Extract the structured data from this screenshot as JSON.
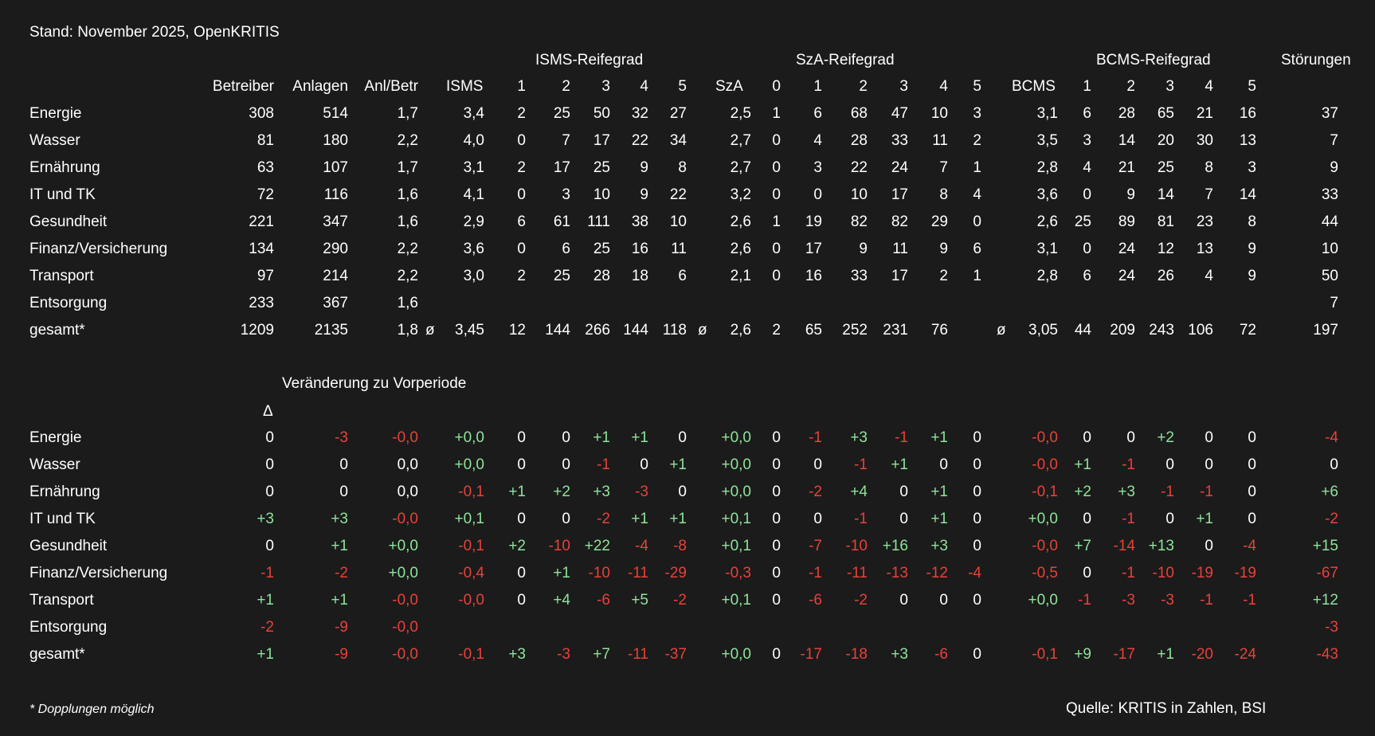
{
  "stand": "Stand: November 2025, OpenKRITIS",
  "groups": {
    "isms": "ISMS-Reifegrad",
    "sza": "SzA-Reifegrad",
    "bcms": "BCMS-Reifegrad",
    "stoerungen": "Störungen"
  },
  "columns": [
    "Betreiber",
    "Anlagen",
    "Anl/Betr",
    "ISMS",
    "1",
    "2",
    "3",
    "4",
    "5",
    "SzA",
    "0",
    "1",
    "2",
    "3",
    "4",
    "5",
    "BCMS",
    "1",
    "2",
    "3",
    "4",
    "5",
    ""
  ],
  "avg_symbol": "ø",
  "rows": [
    {
      "label": "Energie",
      "v": [
        "308",
        "514",
        "1,7",
        "3,4",
        "2",
        "25",
        "50",
        "32",
        "27",
        "2,5",
        "1",
        "6",
        "68",
        "47",
        "10",
        "3",
        "3,1",
        "6",
        "28",
        "65",
        "21",
        "16",
        "37"
      ]
    },
    {
      "label": "Wasser",
      "v": [
        "81",
        "180",
        "2,2",
        "4,0",
        "0",
        "7",
        "17",
        "22",
        "34",
        "2,7",
        "0",
        "4",
        "28",
        "33",
        "11",
        "2",
        "3,5",
        "3",
        "14",
        "20",
        "30",
        "13",
        "7"
      ]
    },
    {
      "label": "Ernährung",
      "v": [
        "63",
        "107",
        "1,7",
        "3,1",
        "2",
        "17",
        "25",
        "9",
        "8",
        "2,7",
        "0",
        "3",
        "22",
        "24",
        "7",
        "1",
        "2,8",
        "4",
        "21",
        "25",
        "8",
        "3",
        "9"
      ]
    },
    {
      "label": "IT und TK",
      "v": [
        "72",
        "116",
        "1,6",
        "4,1",
        "0",
        "3",
        "10",
        "9",
        "22",
        "3,2",
        "0",
        "0",
        "10",
        "17",
        "8",
        "4",
        "3,6",
        "0",
        "9",
        "14",
        "7",
        "14",
        "33"
      ]
    },
    {
      "label": "Gesundheit",
      "v": [
        "221",
        "347",
        "1,6",
        "2,9",
        "6",
        "61",
        "111",
        "38",
        "10",
        "2,6",
        "1",
        "19",
        "82",
        "82",
        "29",
        "0",
        "2,6",
        "25",
        "89",
        "81",
        "23",
        "8",
        "44"
      ]
    },
    {
      "label": "Finanz/Versicherung",
      "v": [
        "134",
        "290",
        "2,2",
        "3,6",
        "0",
        "6",
        "25",
        "16",
        "11",
        "2,6",
        "0",
        "17",
        "9",
        "11",
        "9",
        "6",
        "3,1",
        "0",
        "24",
        "12",
        "13",
        "9",
        "10"
      ]
    },
    {
      "label": "Transport",
      "v": [
        "97",
        "214",
        "2,2",
        "3,0",
        "2",
        "25",
        "28",
        "18",
        "6",
        "2,1",
        "0",
        "16",
        "33",
        "17",
        "2",
        "1",
        "2,8",
        "6",
        "24",
        "26",
        "4",
        "9",
        "50"
      ]
    },
    {
      "label": "Entsorgung",
      "v": [
        "233",
        "367",
        "1,6",
        "",
        "",
        "",
        "",
        "",
        "",
        "",
        "",
        "",
        "",
        "",
        "",
        "",
        "",
        "",
        "",
        "",
        "",
        "",
        "7"
      ]
    },
    {
      "label": "gesamt*",
      "v": [
        "1209",
        "2135",
        "1,8",
        "3,45",
        "12",
        "144",
        "266",
        "144",
        "118",
        "2,6",
        "2",
        "65",
        "252",
        "231",
        "76",
        "",
        "3,05",
        "44",
        "209",
        "243",
        "106",
        "72",
        "197"
      ]
    }
  ],
  "change_title": "Veränderung zu Vorperiode",
  "delta_symbol": "Δ",
  "changes": [
    {
      "label": "Energie",
      "v": [
        "0",
        "-3",
        "-0,0",
        "+0,0",
        "0",
        "0",
        "+1",
        "+1",
        "0",
        "+0,0",
        "0",
        "-1",
        "+3",
        "-1",
        "+1",
        "0",
        "-0,0",
        "0",
        "0",
        "+2",
        "0",
        "0",
        "-4"
      ]
    },
    {
      "label": "Wasser",
      "v": [
        "0",
        "0",
        "0,0",
        "+0,0",
        "0",
        "0",
        "-1",
        "0",
        "+1",
        "+0,0",
        "0",
        "0",
        "-1",
        "+1",
        "0",
        "0",
        "-0,0",
        "+1",
        "-1",
        "0",
        "0",
        "0",
        "0"
      ]
    },
    {
      "label": "Ernährung",
      "v": [
        "0",
        "0",
        "0,0",
        "-0,1",
        "+1",
        "+2",
        "+3",
        "-3",
        "0",
        "+0,0",
        "0",
        "-2",
        "+4",
        "0",
        "+1",
        "0",
        "-0,1",
        "+2",
        "+3",
        "-1",
        "-1",
        "0",
        "+6"
      ]
    },
    {
      "label": "IT und TK",
      "v": [
        "+3",
        "+3",
        "-0,0",
        "+0,1",
        "0",
        "0",
        "-2",
        "+1",
        "+1",
        "+0,1",
        "0",
        "0",
        "-1",
        "0",
        "+1",
        "0",
        "+0,0",
        "0",
        "-1",
        "0",
        "+1",
        "0",
        "-2"
      ]
    },
    {
      "label": "Gesundheit",
      "v": [
        "0",
        "+1",
        "+0,0",
        "-0,1",
        "+2",
        "-10",
        "+22",
        "-4",
        "-8",
        "+0,1",
        "0",
        "-7",
        "-10",
        "+16",
        "+3",
        "0",
        "-0,0",
        "+7",
        "-14",
        "+13",
        "0",
        "-4",
        "+15"
      ]
    },
    {
      "label": "Finanz/Versicherung",
      "v": [
        "-1",
        "-2",
        "+0,0",
        "-0,4",
        "0",
        "+1",
        "-10",
        "-11",
        "-29",
        "-0,3",
        "0",
        "-1",
        "-11",
        "-13",
        "-12",
        "-4",
        "-0,5",
        "0",
        "-1",
        "-10",
        "-19",
        "-19",
        "-67"
      ]
    },
    {
      "label": "Transport",
      "v": [
        "+1",
        "+1",
        "-0,0",
        "-0,0",
        "0",
        "+4",
        "-6",
        "+5",
        "-2",
        "+0,1",
        "0",
        "-6",
        "-2",
        "0",
        "0",
        "0",
        "+0,0",
        "-1",
        "-3",
        "-3",
        "-1",
        "-1",
        "+12"
      ]
    },
    {
      "label": "Entsorgung",
      "v": [
        "-2",
        "-9",
        "-0,0",
        "",
        "",
        "",
        "",
        "",
        "",
        "",
        "",
        "",
        "",
        "",
        "",
        "",
        "",
        "",
        "",
        "",
        "",
        "",
        "-3"
      ]
    },
    {
      "label": "gesamt*",
      "v": [
        "+1",
        "-9",
        "-0,0",
        "-0,1",
        "+3",
        "-3",
        "+7",
        "-11",
        "-37",
        "+0,0",
        "0",
        "-17",
        "-18",
        "+3",
        "-6",
        "0",
        "-0,1",
        "+9",
        "-17",
        "+1",
        "-20",
        "-24",
        "-43"
      ]
    }
  ],
  "footnote": "* Dopplungen möglich",
  "source": "Quelle: KRITIS in Zahlen, BSI",
  "colors": {
    "background": "#1b1b1b",
    "text": "#ffffff",
    "positive": "#8fe39b",
    "negative": "#e8413a"
  }
}
